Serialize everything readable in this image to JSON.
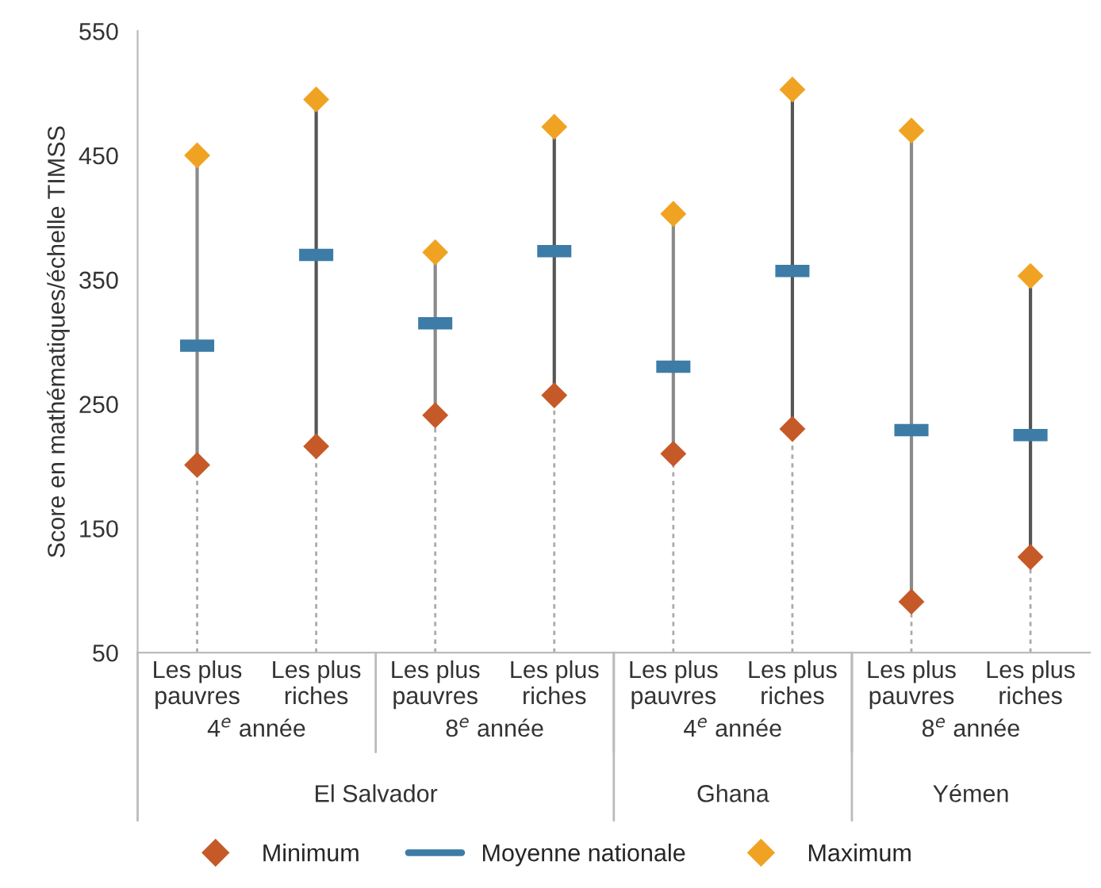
{
  "chart_data": {
    "type": "scatter",
    "ylabel": "Score en mathématiques/échelle TIMSS",
    "categories": [
      "Les plus\npauvres",
      "Les plus\nriches",
      "Les plus\npauvres",
      "Les plus\nriches",
      "Les plus\npauvres",
      "Les plus\nriches",
      "Les plus\npauvres",
      "Les plus\nriches"
    ],
    "series": [
      {
        "name": "Minimum",
        "color": "#c55a28",
        "marker": "diamond",
        "values": [
          201,
          216,
          241,
          257,
          210,
          230,
          91,
          127
        ]
      },
      {
        "name": "Moyenne nationale",
        "color": "#3d7ca6",
        "values": [
          297,
          370,
          315,
          373,
          280,
          357,
          229,
          225
        ]
      },
      {
        "name": "Maximum",
        "color": "#f0a323",
        "marker": "diamond",
        "values": [
          450,
          495,
          372,
          473,
          403,
          503,
          470,
          353
        ]
      }
    ],
    "annotations": [
      "4$^{e}$ année",
      "8$^{e}$ année",
      "4$^{e}$ année",
      "8$^{e}$ année",
      "El Salvador",
      "Ghana",
      "Yémen"
    ],
    "ylim": [
      50,
      550
    ],
    "yticks": [
      50,
      150,
      250,
      350,
      450,
      550
    ],
    "grid": "x",
    "legend": "bottom"
  }
}
